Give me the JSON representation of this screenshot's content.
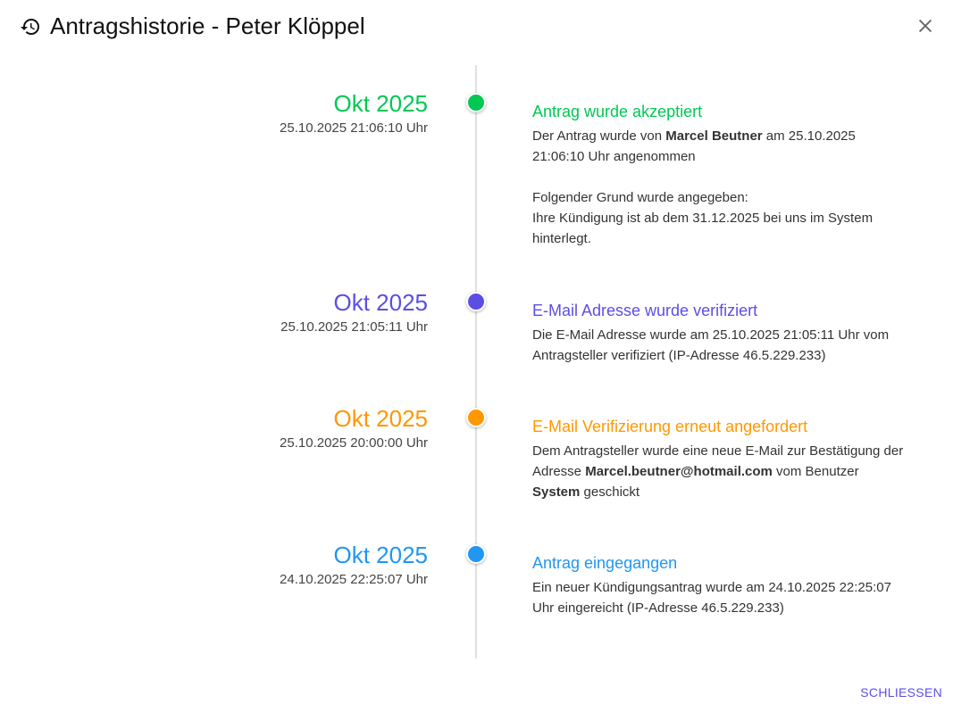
{
  "dialog": {
    "title": "Antragshistorie - Peter Klöppel",
    "icon": "history-icon",
    "close_icon": "close-icon",
    "close_button": "SCHLIESSEN",
    "accent": "#5c4ee5"
  },
  "events": [
    {
      "month": "Okt 2025",
      "date": "25.10.2025 21:06:10 Uhr",
      "color": "#00c853",
      "title": "Antrag wurde akzeptiert",
      "paragraphs": [
        [
          {
            "t": "Der Antrag wurde von "
          },
          {
            "t": "Marcel Beutner",
            "b": true
          },
          {
            "t": " am 25.10.2025 21:06:10 Uhr angenommen"
          }
        ],
        [
          {
            "t": "Folgender Grund wurde angegeben:"
          },
          {
            "br": true
          },
          {
            "t": "Ihre Kündigung ist ab dem 31.12.2025 bei uns im System hinterlegt."
          }
        ]
      ]
    },
    {
      "month": "Okt 2025",
      "date": "25.10.2025 21:05:11 Uhr",
      "color": "#5c4ee5",
      "title": "E-Mail Adresse wurde verifiziert",
      "paragraphs": [
        [
          {
            "t": "Die E-Mail Adresse wurde am 25.10.2025 21:05:11 Uhr vom Antragsteller verifiziert (IP-Adresse 46.5.229.233)"
          }
        ]
      ]
    },
    {
      "month": "Okt 2025",
      "date": "25.10.2025 20:00:00 Uhr",
      "color": "#ff9800",
      "title": "E-Mail Verifizierung erneut angefordert",
      "paragraphs": [
        [
          {
            "t": "Dem Antragsteller wurde eine neue E-Mail zur Bestätigung der Adresse "
          },
          {
            "t": "Marcel.beutner@hotmail.com",
            "b": true
          },
          {
            "t": " vom Benutzer "
          },
          {
            "t": "System",
            "b": true
          },
          {
            "t": " geschickt"
          }
        ]
      ]
    },
    {
      "month": "Okt 2025",
      "date": "24.10.2025 22:25:07 Uhr",
      "color": "#2196f3",
      "title": "Antrag eingegangen",
      "paragraphs": [
        [
          {
            "t": "Ein neuer Kündigungsantrag wurde am 24.10.2025 22:25:07 Uhr eingereicht (IP-Adresse 46.5.229.233)"
          }
        ]
      ]
    }
  ]
}
